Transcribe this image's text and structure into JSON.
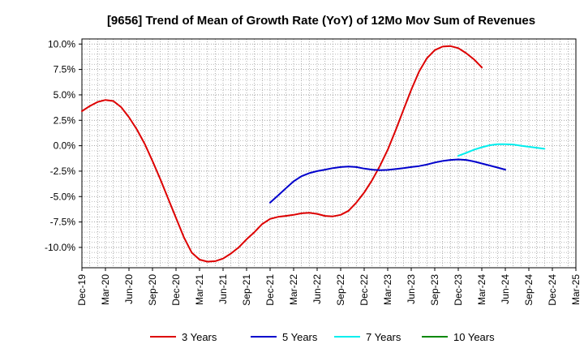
{
  "chart_data": {
    "type": "line",
    "title": "[9656]  Trend of Mean of Growth Rate (YoY) of 12Mo Mov Sum of Revenues",
    "xlabel": "",
    "ylabel": "",
    "ylim": [
      -12.0,
      10.5
    ],
    "grid": true,
    "legend_position": "bottom",
    "x_ticks": [
      "Dec-19",
      "Mar-20",
      "Jun-20",
      "Sep-20",
      "Dec-20",
      "Mar-21",
      "Jun-21",
      "Sep-21",
      "Dec-21",
      "Mar-22",
      "Jun-22",
      "Sep-22",
      "Dec-22",
      "Mar-23",
      "Jun-23",
      "Sep-23",
      "Dec-23",
      "Mar-24",
      "Jun-24",
      "Sep-24",
      "Dec-24",
      "Mar-25"
    ],
    "y_ticks": [
      10.0,
      7.5,
      5.0,
      2.5,
      0.0,
      -2.5,
      -5.0,
      -7.5,
      -10.0
    ],
    "y_tick_labels": [
      "10.0%",
      "7.5%",
      "5.0%",
      "2.5%",
      "0.0%",
      "-2.5%",
      "-5.0%",
      "-7.5%",
      "-10.0%"
    ],
    "series": [
      {
        "name": "3 Years",
        "color": "#dd0000",
        "start_index": 0,
        "values": [
          3.4,
          3.9,
          4.3,
          4.5,
          4.4,
          3.8,
          2.8,
          1.6,
          0.2,
          -1.5,
          -3.3,
          -5.2,
          -7.1,
          -9.0,
          -10.5,
          -11.2,
          -11.4,
          -11.35,
          -11.1,
          -10.6,
          -10.0,
          -9.2,
          -8.5,
          -7.7,
          -7.2,
          -7.0,
          -6.9,
          -6.8,
          -6.65,
          -6.6,
          -6.7,
          -6.9,
          -6.95,
          -6.8,
          -6.4,
          -5.6,
          -4.6,
          -3.4,
          -2.0,
          -0.4,
          1.5,
          3.5,
          5.5,
          7.3,
          8.6,
          9.4,
          9.75,
          9.8,
          9.6,
          9.1,
          8.5,
          7.7
        ]
      },
      {
        "name": "5 Years",
        "color": "#0000cc",
        "start_index": 24,
        "values": [
          -5.6,
          -4.9,
          -4.2,
          -3.5,
          -3.0,
          -2.7,
          -2.5,
          -2.35,
          -2.2,
          -2.1,
          -2.05,
          -2.1,
          -2.25,
          -2.35,
          -2.4,
          -2.38,
          -2.3,
          -2.2,
          -2.1,
          -2.0,
          -1.85,
          -1.65,
          -1.5,
          -1.4,
          -1.35,
          -1.4,
          -1.55,
          -1.75,
          -1.95,
          -2.15,
          -2.35
        ]
      },
      {
        "name": "7 Years",
        "color": "#00eeee",
        "start_index": 48,
        "values": [
          -1.0,
          -0.7,
          -0.4,
          -0.15,
          0.05,
          0.15,
          0.15,
          0.12,
          0.0,
          -0.1,
          -0.2,
          -0.3
        ]
      },
      {
        "name": "10 Years",
        "color": "#008800",
        "start_index": 0,
        "values": []
      }
    ]
  }
}
